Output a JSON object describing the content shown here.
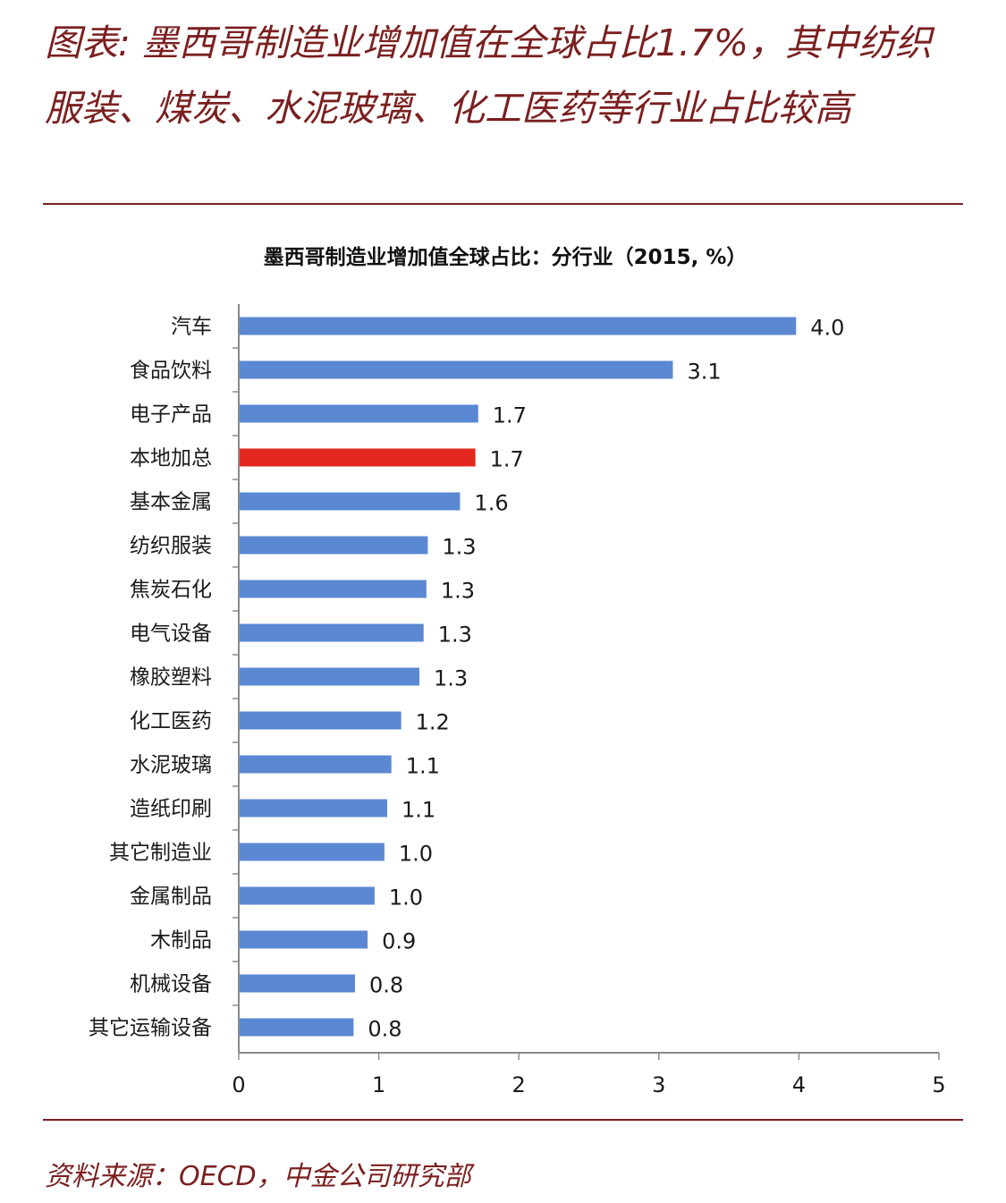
{
  "header": {
    "figure_title": "图表: 墨西哥制造业增加值在全球占比1.7%，其中纺织服装、煤炭、水泥玻璃、化工医药等行业占比较高"
  },
  "footer": {
    "source": "资料来源：OECD，中金公司研究部"
  },
  "colors": {
    "accent": "#7b1f1f",
    "bar": "#5b88d2",
    "highlight_bar": "#e2281e"
  },
  "chart_data": {
    "type": "bar",
    "orientation": "horizontal",
    "title": "墨西哥制造业增加值全球占比：分行业（2015, %）",
    "categories": [
      "汽车",
      "食品饮料",
      "电子产品",
      "本地加总",
      "基本金属",
      "纺织服装",
      "焦炭石化",
      "电气设备",
      "橡胶塑料",
      "化工医药",
      "水泥玻璃",
      "造纸印刷",
      "其它制造业",
      "金属制品",
      "木制品",
      "机械设备",
      "其它运输设备"
    ],
    "values": [
      3.98,
      3.1,
      1.71,
      1.69,
      1.58,
      1.35,
      1.34,
      1.32,
      1.29,
      1.16,
      1.09,
      1.06,
      1.04,
      0.97,
      0.92,
      0.83,
      0.82
    ],
    "value_labels": [
      "4.0",
      "3.1",
      "1.7",
      "1.7",
      "1.6",
      "1.3",
      "1.3",
      "1.3",
      "1.3",
      "1.2",
      "1.1",
      "1.1",
      "1.0",
      "1.0",
      "0.9",
      "0.8",
      "0.8"
    ],
    "highlight_category": "本地加总",
    "xlim": [
      0,
      5
    ],
    "xticks": [
      "0",
      "1",
      "2",
      "3",
      "4",
      "5"
    ],
    "xlabel": "",
    "ylabel": "",
    "grid": false,
    "legend": "none"
  }
}
